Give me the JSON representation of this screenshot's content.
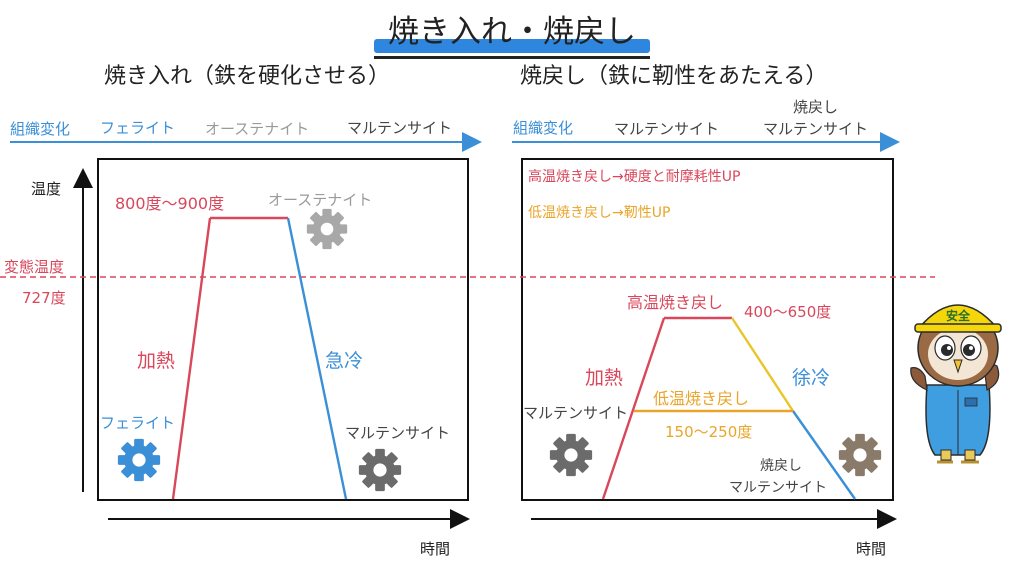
{
  "title": "焼き入れ・焼戻し",
  "left": {
    "heading": "焼き入れ（鉄を硬化させる）",
    "timeline_label": "組織変化",
    "timeline": [
      "フェライト",
      "オーステナイト",
      "マルテンサイト"
    ],
    "y_axis": "温度",
    "x_axis": "時間",
    "temp_range": "800度〜900度",
    "phase_top": "オーステナイト",
    "heating": "加熱",
    "rapid_cooling": "急冷",
    "start_phase": "フェライト",
    "end_phase": "マルテンサイト"
  },
  "transform": {
    "label": "変態温度",
    "value": "727度"
  },
  "right": {
    "heading": "焼戻し（鉄に靭性をあたえる）",
    "timeline_label": "組織変化",
    "timeline": [
      "マルテンサイト",
      "焼戻し",
      "マルテンサイト"
    ],
    "note_high": "高温焼き戻し→硬度と耐摩耗性UP",
    "note_low": "低温焼き戻し→靭性UP",
    "high_label": "高温焼き戻し",
    "high_range": "400〜650度",
    "low_label": "低温焼き戻し",
    "low_range": "150〜250度",
    "heating": "加熱",
    "slow_cooling": "徐冷",
    "start_phase": "マルテンサイト",
    "end_phase_1": "焼戻し",
    "end_phase_2": "マルテンサイト",
    "x_axis": "時間"
  },
  "mascot": {
    "helmet_text": "安全"
  },
  "colors": {
    "heat": "#d9475b",
    "cool": "#3b8fd6",
    "low": "#e9a52a",
    "gear_blue": "#3b8fd6",
    "gear_gray": "#6b6b6b",
    "gear_brown": "#8a7a6a"
  },
  "icons": [
    "gear-icon",
    "mascot-owl"
  ]
}
